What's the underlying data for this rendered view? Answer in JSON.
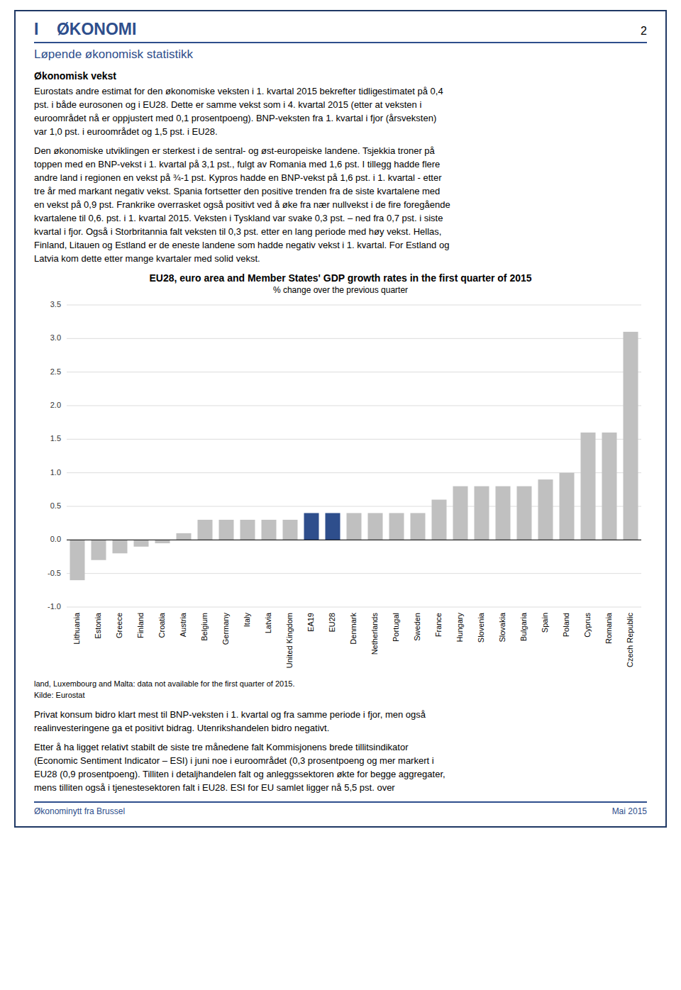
{
  "page_number": "2",
  "section_title": "I    ØKONOMI",
  "section_subtitle": "Løpende økonomisk statistikk",
  "heading": "Økonomisk vekst",
  "text_before": [
    [
      "Eurostats andre estimat for den økonomiske veksten i 1. kvartal 2015 bekrefter tidligestimatet på 0,4",
      "pst. i både eurosonen og i EU28. Dette er samme vekst som i 4. kvartal 2015 (etter at veksten i",
      "euroområdet nå er oppjustert med 0,1 prosentpoeng). BNP-veksten fra 1. kvartal i fjor (årsveksten)",
      "var 1,0 pst. i euroområdet og 1,5 pst. i EU28."
    ],
    [
      "Den økonomiske utviklingen er sterkest i de sentral- og øst-europeiske landene. Tsjekkia troner på",
      "toppen med en BNP-vekst i 1. kvartal på 3,1 pst., fulgt av Romania med 1,6 pst. I tillegg hadde flere",
      "andre land i regionen en vekst på ¾-1 pst. Kypros hadde en BNP-vekst på 1,6 pst. i 1. kvartal - etter",
      "tre år med markant negativ vekst. Spania fortsetter den positive trenden fra de siste kvartalene med",
      "en vekst på 0,9 pst. Frankrike overrasket også positivt ved å øke fra nær nullvekst i de fire foregående",
      "kvartalene til 0,6. pst. i 1. kvartal 2015. Veksten i Tyskland var svake 0,3 pst. – ned fra 0,7 pst. i siste",
      "kvartal i fjor. Også i Storbritannia falt veksten til 0,3 pst. etter en lang periode med høy vekst. Hellas,",
      "Finland, Litauen og Estland er de eneste landene som hadde negativ vekst i 1. kvartal. For Estland og",
      "Latvia kom dette etter mange kvartaler med solid vekst."
    ]
  ],
  "chart_data": {
    "type": "bar",
    "title": "EU28, euro area and Member States' GDP growth rates in the first quarter of 2015",
    "subtitle": "% change over the previous quarter",
    "categories": [
      "Lithuania",
      "Estonia",
      "Greece",
      "Finland",
      "Croatia",
      "Austria",
      "Belgium",
      "Germany",
      "Italy",
      "Latvia",
      "United Kingdom",
      "EA19",
      "EU28",
      "Denmark",
      "Netherlands",
      "Portugal",
      "Sweden",
      "France",
      "Hungary",
      "Slovenia",
      "Slovakia",
      "Bulgaria",
      "Spain",
      "Poland",
      "Cyprus",
      "Romania",
      "Czech Republic"
    ],
    "values": [
      -0.6,
      -0.3,
      -0.2,
      -0.1,
      -0.05,
      0.1,
      0.3,
      0.3,
      0.3,
      0.3,
      0.3,
      0.4,
      0.4,
      0.4,
      0.4,
      0.4,
      0.4,
      0.6,
      0.8,
      0.8,
      0.8,
      0.8,
      0.9,
      1.0,
      1.6,
      1.6,
      3.1
    ],
    "colors": [
      "#C0C0C0",
      "#C0C0C0",
      "#C0C0C0",
      "#C0C0C0",
      "#C0C0C0",
      "#C0C0C0",
      "#C0C0C0",
      "#C0C0C0",
      "#C0C0C0",
      "#C0C0C0",
      "#C0C0C0",
      "#2E4E8C",
      "#2E4E8C",
      "#C0C0C0",
      "#C0C0C0",
      "#C0C0C0",
      "#C0C0C0",
      "#C0C0C0",
      "#C0C0C0",
      "#C0C0C0",
      "#C0C0C0",
      "#C0C0C0",
      "#C0C0C0",
      "#C0C0C0",
      "#C0C0C0",
      "#C0C0C0",
      "#C0C0C0"
    ],
    "ylim": [
      -1.0,
      3.5
    ],
    "yticks": [
      {
        "value": -1.0,
        "label": "-1.0"
      },
      -0.5,
      {
        "value": 0.0,
        "label": "0.0"
      },
      0.5,
      {
        "value": 1.0,
        "label": "1.0"
      },
      1.5,
      {
        "value": 2.0,
        "label": "2.0"
      },
      2.5,
      {
        "value": 3.0,
        "label": "3.0"
      },
      3.5
    ],
    "grid": true,
    "footnote": "land, Luxembourg and Malta: data not available for the first quarter of 2015.",
    "source": "Kilde: Eurostat"
  },
  "text_after": [
    [
      "Privat konsum bidro klart mest til BNP-veksten i 1. kvartal og fra samme periode i fjor, men også",
      "realinvesteringene ga et positivt bidrag. Utenrikshandelen bidro negativt."
    ],
    [
      "Etter å ha ligget relativt stabilt de siste tre månedene falt Kommisjonens brede tillitsindikator",
      "(Economic Sentiment Indicator – ESI) i juni noe i euroområdet (0,3 prosentpoeng og mer markert i",
      "EU28 (0,9 prosentpoeng). Tilliten i detaljhandelen falt og anleggssektoren økte for begge aggregater,",
      "mens tilliten også i tjenestesektoren falt i EU28. ESI for EU samlet ligger nå 5,5 pst. over"
    ]
  ],
  "footer": "Økonominytt fra Brussel",
  "footer_date": "Mai 2015"
}
